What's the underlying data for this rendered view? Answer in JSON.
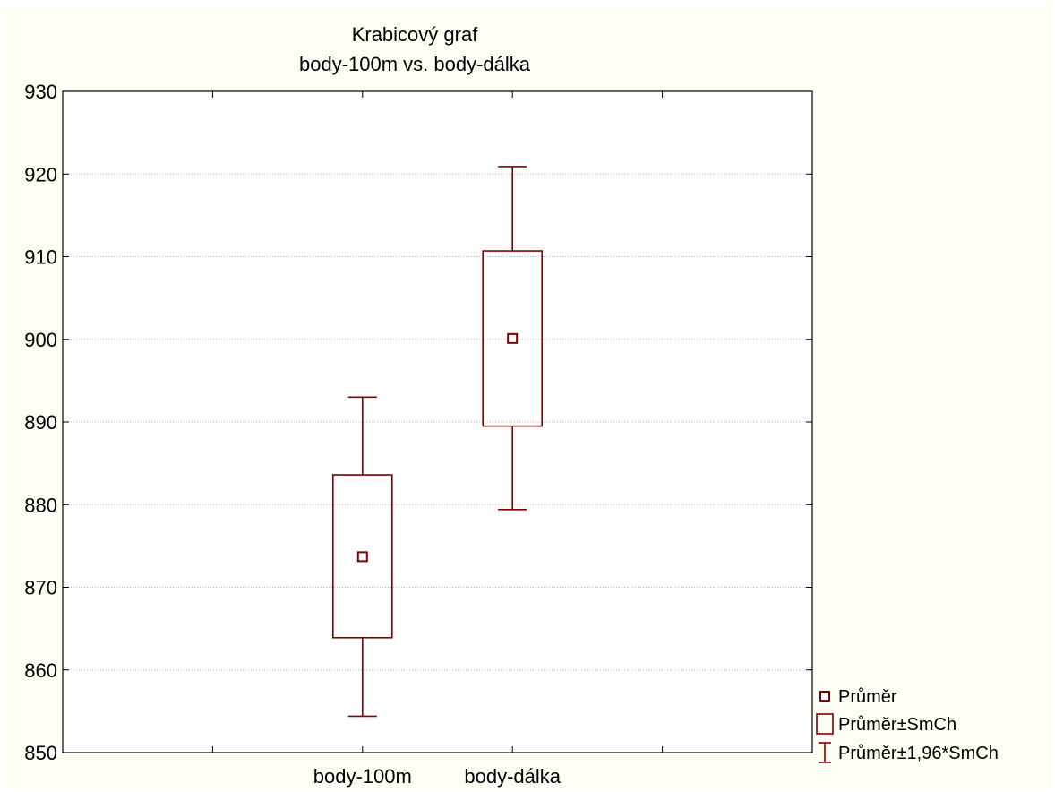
{
  "chart_data": {
    "type": "box",
    "title_lines": [
      "Krabicový graf",
      "body-100m vs. body-dálka"
    ],
    "categories": [
      "body-100m",
      "body-dálka"
    ],
    "series": [
      {
        "category": "body-100m",
        "mean": 873.7,
        "box_low": 863.9,
        "box_high": 883.6,
        "whisker_low": 854.4,
        "whisker_high": 893.0
      },
      {
        "category": "body-dálka",
        "mean": 900.1,
        "box_low": 889.5,
        "box_high": 910.7,
        "whisker_low": 879.4,
        "whisker_high": 920.9
      }
    ],
    "ylim": [
      850,
      930
    ],
    "yticks": [
      850,
      860,
      870,
      880,
      890,
      900,
      910,
      920,
      930
    ],
    "grid": true,
    "legend": {
      "position": "bottom-right",
      "items": [
        {
          "symbol": "mean-square",
          "label": "Průměr"
        },
        {
          "symbol": "box",
          "label": "Průměr±SmCh"
        },
        {
          "symbol": "whisker",
          "label": "Průměr±1,96*SmCh"
        }
      ]
    },
    "color": "#7f0000"
  }
}
